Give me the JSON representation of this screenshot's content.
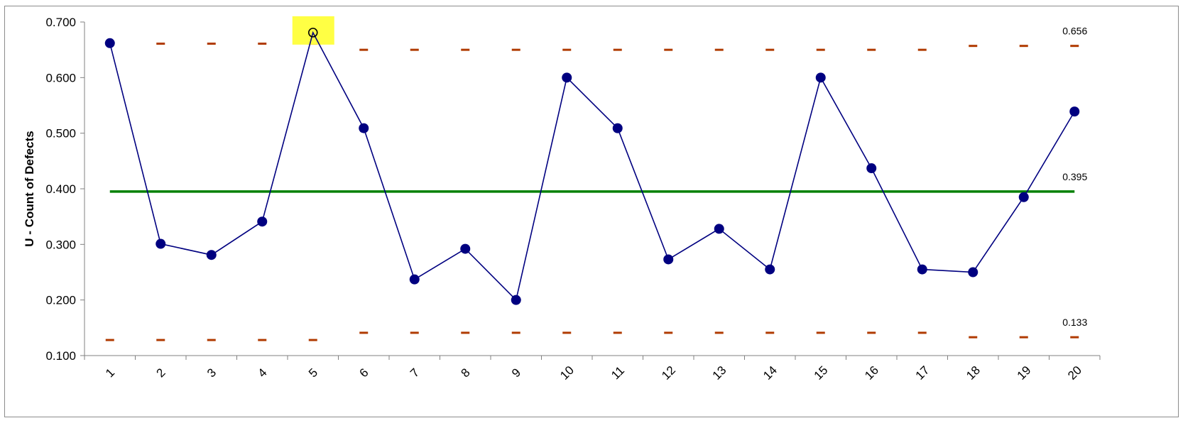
{
  "chart_data": {
    "type": "line",
    "title": "",
    "xlabel": "",
    "ylabel": "U - Count of Defects",
    "ylim": [
      0.1,
      0.7
    ],
    "grid": false,
    "yticks": [
      "0.700",
      "0.600",
      "0.500",
      "0.400",
      "0.300",
      "0.200",
      "0.100"
    ],
    "ytick_values": [
      0.7,
      0.6,
      0.5,
      0.4,
      0.3,
      0.2,
      0.1
    ],
    "categories": [
      "1",
      "2",
      "3",
      "4",
      "5",
      "6",
      "7",
      "8",
      "9",
      "10",
      "11",
      "12",
      "13",
      "14",
      "15",
      "16",
      "17",
      "18",
      "19",
      "20"
    ],
    "series": [
      {
        "values": [
          0.662,
          0.301,
          0.281,
          0.341,
          0.681,
          0.509,
          0.237,
          0.292,
          0.2,
          0.6,
          0.509,
          0.273,
          0.328,
          0.255,
          0.6,
          0.437,
          0.255,
          0.25,
          0.385,
          0.539
        ],
        "color": "#000080"
      }
    ],
    "center_line": {
      "value": 0.395,
      "label": "0.395",
      "color": "#008000"
    },
    "ucl": {
      "values": [
        0.661,
        0.661,
        0.661,
        0.661,
        0.661,
        0.65,
        0.65,
        0.65,
        0.65,
        0.65,
        0.65,
        0.65,
        0.65,
        0.65,
        0.65,
        0.65,
        0.65,
        0.657,
        0.657,
        0.657
      ],
      "label": "0.656",
      "color": "#b03a00"
    },
    "lcl": {
      "values": [
        0.128,
        0.128,
        0.128,
        0.128,
        0.128,
        0.141,
        0.141,
        0.141,
        0.141,
        0.141,
        0.141,
        0.141,
        0.141,
        0.141,
        0.141,
        0.141,
        0.141,
        0.133,
        0.133,
        0.133
      ],
      "label": "0.133",
      "color": "#b03a00"
    },
    "out_of_control": {
      "index": 4,
      "highlight_color": "#ffff44"
    }
  }
}
